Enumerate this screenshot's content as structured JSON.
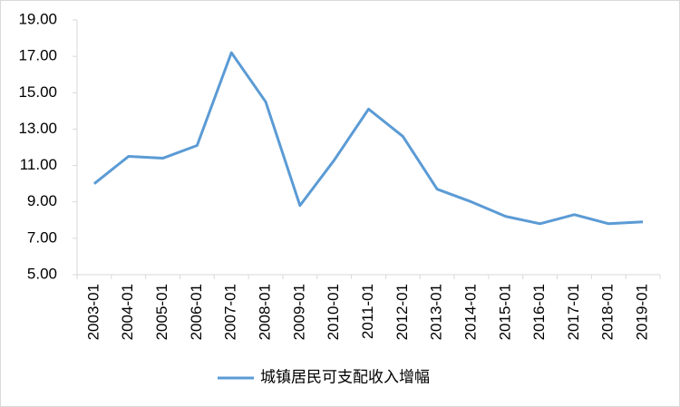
{
  "chart_data": {
    "type": "line",
    "categories": [
      "2003-01",
      "2004-01",
      "2005-01",
      "2006-01",
      "2007-01",
      "2008-01",
      "2009-01",
      "2010-01",
      "2011-01",
      "2012-01",
      "2013-01",
      "2014-01",
      "2015-01",
      "2016-01",
      "2017-01",
      "2018-01",
      "2019-01"
    ],
    "series": [
      {
        "name": "城镇居民可支配收入增幅",
        "color": "#5b9bd5",
        "values": [
          10.0,
          11.5,
          11.4,
          12.1,
          17.2,
          14.5,
          8.8,
          11.3,
          14.1,
          12.6,
          9.7,
          9.0,
          8.2,
          7.8,
          8.3,
          7.8,
          7.9
        ]
      }
    ],
    "ylim": [
      5,
      19
    ],
    "yticks": [
      {
        "value": 5,
        "label": "5.00"
      },
      {
        "value": 7,
        "label": "7.00"
      },
      {
        "value": 9,
        "label": "9.00"
      },
      {
        "value": 11,
        "label": "11.00"
      },
      {
        "value": 13,
        "label": "13.00"
      },
      {
        "value": 15,
        "label": "15.00"
      },
      {
        "value": 17,
        "label": "17.00"
      },
      {
        "value": 19,
        "label": "19.00"
      }
    ],
    "grid": false,
    "legend": "bottom"
  }
}
